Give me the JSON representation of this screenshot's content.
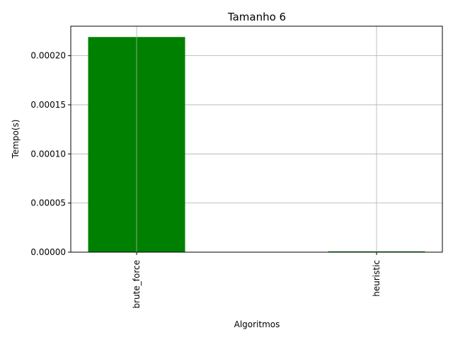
{
  "chart_data": {
    "type": "bar",
    "title": "Tamanho 6",
    "xlabel": "Algoritmos",
    "ylabel": "Tempo(s)",
    "categories": [
      "brute_force",
      "heuristic"
    ],
    "values": [
      0.000219,
      8e-07
    ],
    "ylim": [
      0,
      0.00023
    ],
    "yticks": [
      "0.00000",
      "0.00005",
      "0.00010",
      "0.00015",
      "0.00020"
    ],
    "ytick_values": [
      0,
      5e-05,
      0.0001,
      0.00015,
      0.0002
    ],
    "grid": true,
    "bar_color": "#008000"
  }
}
